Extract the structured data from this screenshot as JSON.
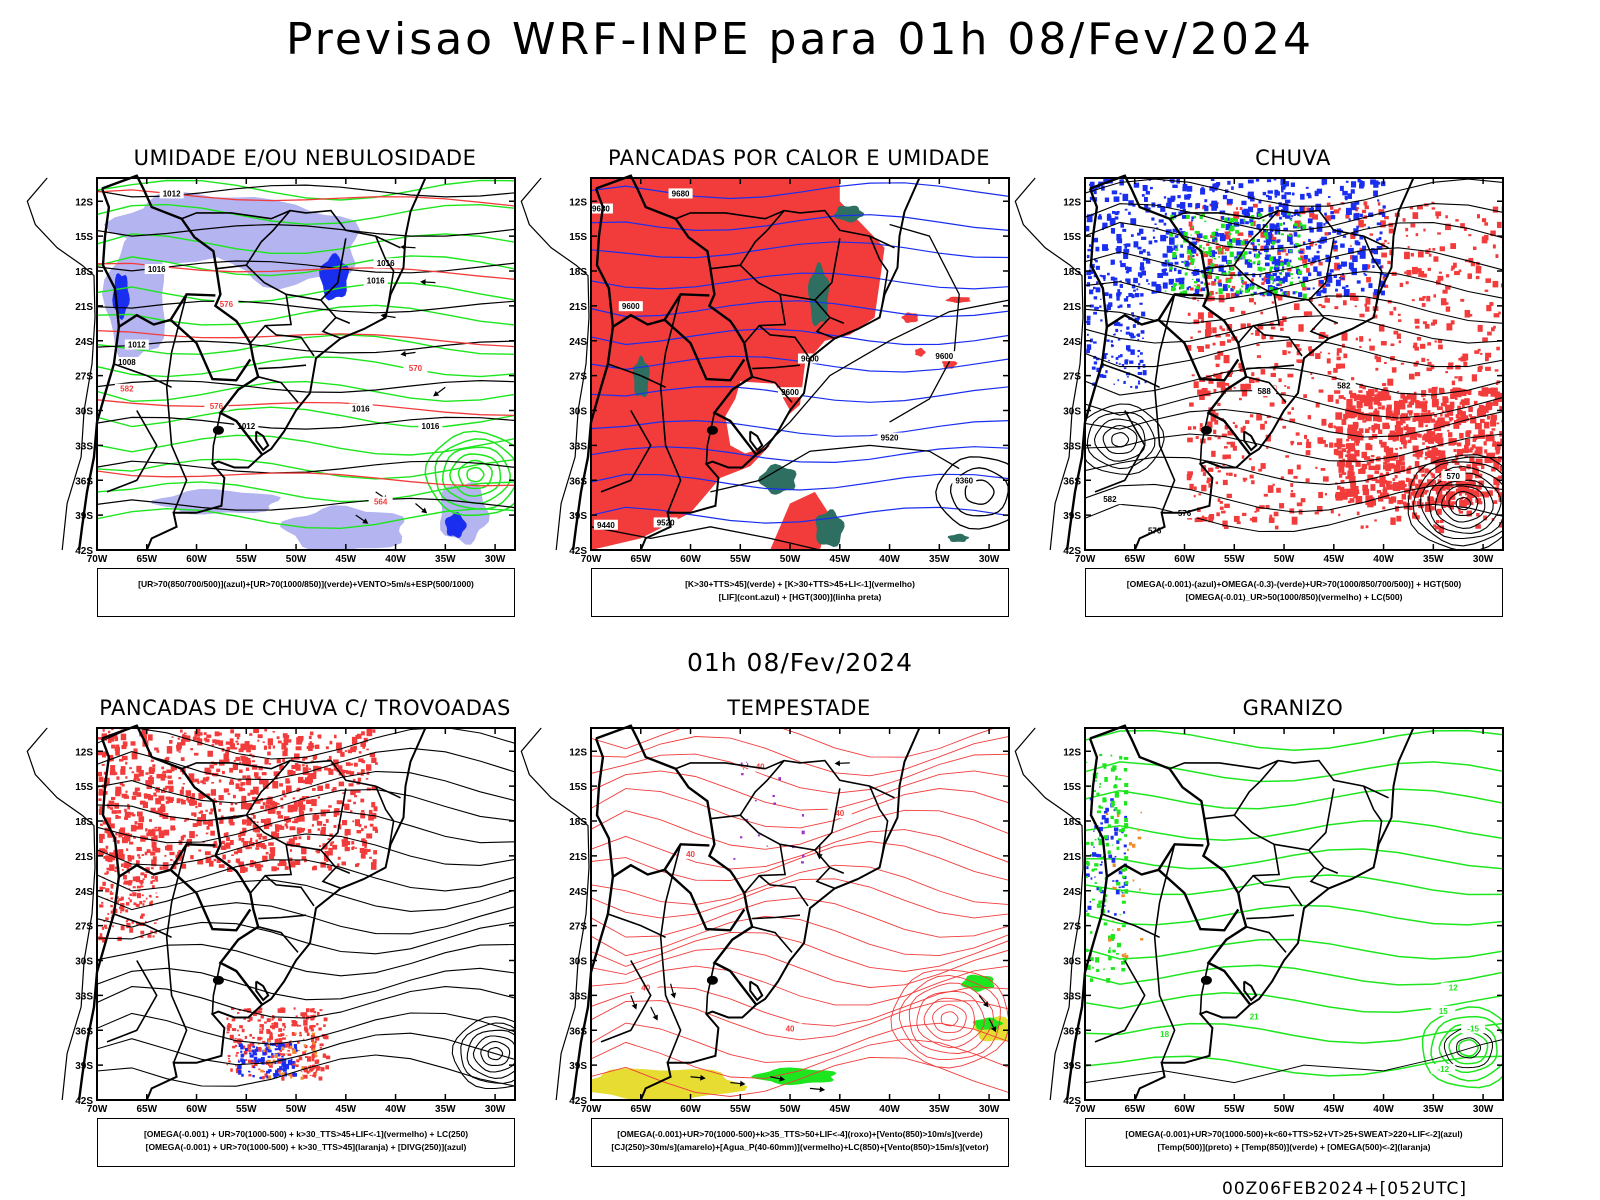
{
  "title": "Previsao WRF-INPE  para 01h 08/Fev/2024",
  "middle_date": "01h 08/Fev/2024",
  "footer": "00Z06FEB2024+[052UTC]",
  "axes": {
    "y_ticks": [
      "12S",
      "15S",
      "18S",
      "21S",
      "24S",
      "27S",
      "30S",
      "33S",
      "36S",
      "39S",
      "42S"
    ],
    "x_ticks": [
      "70W",
      "65W",
      "60W",
      "55W",
      "50W",
      "45W",
      "40W",
      "35W",
      "30W"
    ],
    "lat_range": [
      -42,
      -10
    ],
    "lon_range": [
      -70,
      -28
    ]
  },
  "colors": {
    "red": "#f23c3c",
    "blue": "#1a2ef0",
    "lavender": "#b4b4f0",
    "green": "#1ee61e",
    "dark_green": "#2f6f62",
    "yellow": "#e6dc32",
    "orange": "#f08c28",
    "purple": "#a030c8"
  },
  "panels": [
    {
      "id": "umidade",
      "title": "UMIDADE E/OU NEBULOSIDADE",
      "legend": [
        "[UR>70(850/700/500)](azul)+[UR>70(1000/850)](verde)+VENTO>5m/s+ESP(500/1000)"
      ],
      "contour_labels": [
        "1012",
        "1012",
        "1016",
        "1016",
        "1016",
        "1016",
        "1016",
        "1012",
        "1008",
        "576",
        "576",
        "570",
        "582",
        "564"
      ]
    },
    {
      "id": "pancadas-calor",
      "title": "PANCADAS POR CALOR E UMIDADE",
      "legend": [
        "[K>30+TTS>45](verde) + [K>30+TTS>45+LI<-1](vermelho)",
        "[LIF](cont.azul) + [HGT(300)](linha preta)"
      ],
      "contour_labels": [
        "9680",
        "9680",
        "9600",
        "9600",
        "9600",
        "9600",
        "9520",
        "9520",
        "9440",
        "9360"
      ]
    },
    {
      "id": "chuva",
      "title": "CHUVA",
      "legend": [
        "[OMEGA(-0.001)-(azul)+OMEGA(-0.3)-(verde)+UR>70(1000/850/700/500)] + HGT(500)",
        "[OMEGA(-0.01)_UR>50(1000/850)(vermelho) + LC(500)"
      ],
      "contour_labels": [
        "582",
        "588",
        "582",
        "576",
        "576",
        "570"
      ]
    },
    {
      "id": "trovoadas",
      "title": "PANCADAS DE CHUVA C/ TROVOADAS",
      "legend": [
        "[OMEGA(-0.001) + UR>70(1000-500) + k>30_TTS>45+LIF<-1](vermelho) + LC(250)",
        "[OMEGA(-0.001) + UR>70(1000-500) + k>30_TTS>45](laranja) + [DIVG(250)](azul)"
      ],
      "contour_labels": []
    },
    {
      "id": "tempestade",
      "title": "TEMPESTADE",
      "legend": [
        "[OMEGA(-0.001)+UR>70(1000-500)+k>35_TTS>50+LIF<-4](roxo)+[Vento(850)>10m/s](verde)",
        "[CJ(250)>30m/s](amarelo)+[Agua_P(40-60mm)](vermelho)+LC(850)+[Vento(850)>15m/s](vetor)"
      ],
      "contour_labels": [
        "40",
        "40",
        "40",
        "40",
        "40"
      ]
    },
    {
      "id": "granizo",
      "title": "GRANIZO",
      "legend": [
        "[OMEGA(-0.001)+UR>70(1000-500)+k<60+TTS>52+VT>25+SWEAT>220+LIF<-2](azul)",
        "[Temp(500)](preto) + [Temp(850)](verde) + [OMEGA(500)<-2](laranja)"
      ],
      "contour_labels": [
        "12",
        "15",
        "18",
        "21",
        "-12",
        "-15"
      ]
    }
  ]
}
